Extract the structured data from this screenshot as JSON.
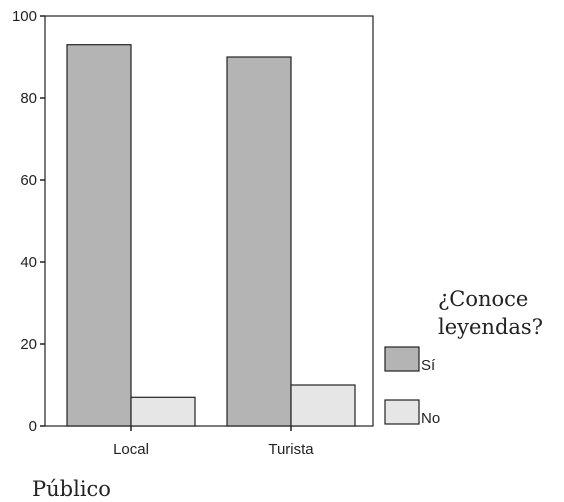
{
  "chart_data": {
    "type": "bar",
    "categories": [
      "Local",
      "Turista"
    ],
    "series": [
      {
        "name": "Sí",
        "values": [
          93,
          90
        ],
        "color": "#b4b4b4"
      },
      {
        "name": "No",
        "values": [
          7,
          10
        ],
        "color": "#e6e6e6"
      }
    ],
    "ylim": [
      0,
      100
    ],
    "yticks": [
      0,
      20,
      40,
      60,
      80,
      100
    ],
    "xlabel": "Público",
    "ylabel": "",
    "legend": {
      "title_lines": [
        "¿Conoce",
        "leyendas?"
      ],
      "placement": "right"
    },
    "grid": false
  }
}
